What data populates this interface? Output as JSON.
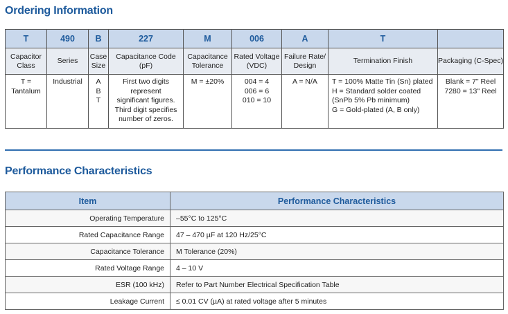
{
  "ordering": {
    "title": "Ordering Information",
    "codes": [
      "T",
      "490",
      "B",
      "227",
      "M",
      "006",
      "A",
      "T",
      ""
    ],
    "headers": [
      "Capacitor Class",
      "Series",
      "Case Size",
      "Capacitance Code (pF)",
      "Capacitance Tolerance",
      "Rated Voltage (VDC)",
      "Failure Rate/ Design",
      "Termination Finish",
      "Packaging (C-Spec)"
    ],
    "body": {
      "capacitor_class": [
        "T =",
        "Tantalum"
      ],
      "series": [
        "Industrial"
      ],
      "case_size": [
        "A",
        "B",
        "T"
      ],
      "capacitance_code": [
        "First two digits",
        "represent",
        "significant figures.",
        "Third digit specifies",
        "number of zeros."
      ],
      "tolerance": [
        "M = ±20%"
      ],
      "rated_voltage": [
        "004 = 4",
        "006 = 6",
        "010 = 10"
      ],
      "failure_rate": [
        "A = N/A"
      ],
      "termination": [
        "T = 100% Matte Tin (Sn) plated",
        "H = Standard solder coated",
        "(SnPb 5% Pb minimum)",
        "G = Gold-plated (A, B only)"
      ],
      "packaging": [
        "Blank = 7\" Reel",
        "7280 = 13\" Reel"
      ]
    }
  },
  "performance": {
    "title": "Performance Characteristics",
    "headers": [
      "Item",
      "Performance Characteristics"
    ],
    "rows": [
      {
        "item": "Operating Temperature",
        "value": "–55°C to 125°C"
      },
      {
        "item": "Rated Capacitance Range",
        "value": "47 – 470 µF at 120 Hz/25°C"
      },
      {
        "item": "Capacitance Tolerance",
        "value": "M Tolerance (20%)"
      },
      {
        "item": "Rated Voltage Range",
        "value": "4 – 10 V"
      },
      {
        "item": "ESR (100 kHz)",
        "value": "Refer to Part Number Electrical Specification Table"
      },
      {
        "item": "Leakage Current",
        "value": "≤ 0.01 CV (µA) at rated voltage after 5 minutes"
      }
    ]
  },
  "colors": {
    "heading": "#1d5a9c",
    "header_fill": "#c9d8ec",
    "rule": "#2f6db0"
  }
}
